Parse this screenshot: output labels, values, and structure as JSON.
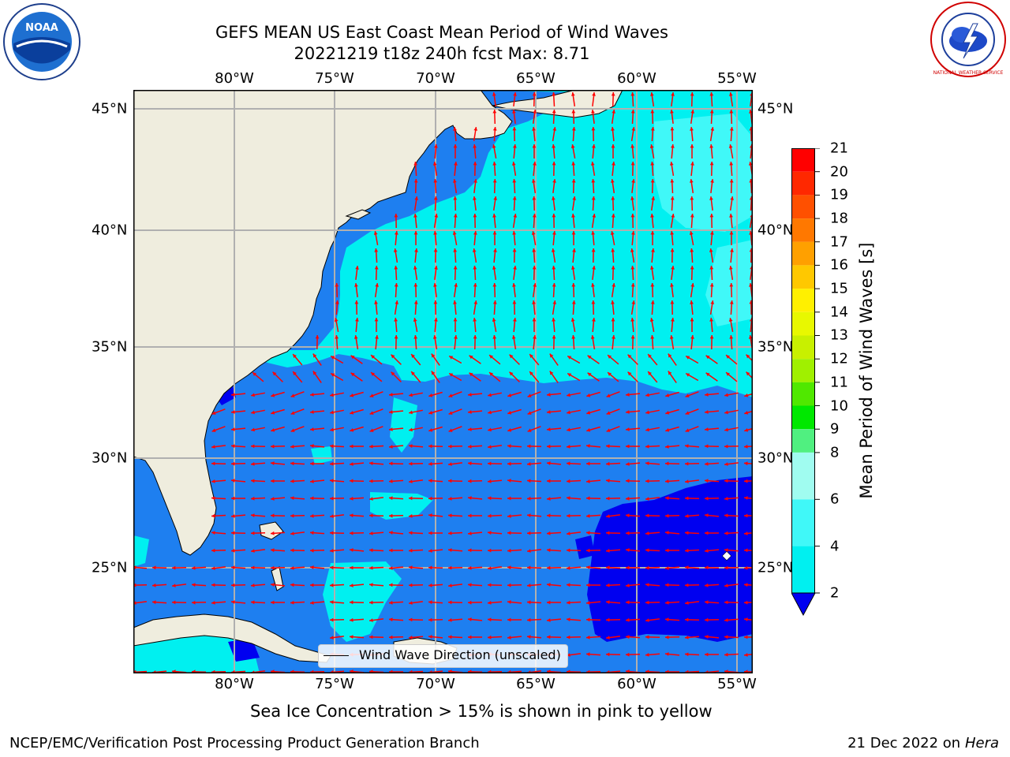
{
  "title": {
    "line1": "GEFS MEAN US East Coast Mean Period of Wind Waves",
    "line2": "20221219 t18z 240h fcst   Max: 8.71"
  },
  "map": {
    "lon_ticks": [
      "80°W",
      "75°W",
      "70°W",
      "65°W",
      "60°W",
      "55°W"
    ],
    "lat_ticks": [
      "45°N",
      "40°N",
      "35°N",
      "30°N",
      "25°N"
    ],
    "land_color": "#efedde",
    "arrow_color": "#ff0000",
    "grid_color": "#b0b0b0",
    "regions": [
      {
        "name": "band 2-4 s",
        "color": "#1e7ff0"
      },
      {
        "name": "band 4-6 s",
        "color": "#00f0f0"
      },
      {
        "name": "band 6-8 s",
        "color": "#40f8f8"
      },
      {
        "name": "band <2 s",
        "color": "#0000f0"
      }
    ],
    "legend_label": "Wind Wave Direction (unscaled)"
  },
  "colorbar": {
    "title": "Mean Period of Wind Waves [s]",
    "tick_labels": [
      "21",
      "20",
      "19",
      "18",
      "17",
      "16",
      "15",
      "14",
      "13",
      "12",
      "11",
      "10",
      "9",
      "8",
      "6",
      "4",
      "2"
    ],
    "tick_values": [
      21,
      20,
      19,
      18,
      17,
      16,
      15,
      14,
      13,
      12,
      11,
      10,
      9,
      8,
      6,
      4,
      2
    ],
    "levels": [
      {
        "from": 20,
        "to": 21,
        "color": "#ff0000"
      },
      {
        "from": 19,
        "to": 20,
        "color": "#ff2800"
      },
      {
        "from": 18,
        "to": 19,
        "color": "#ff5000"
      },
      {
        "from": 17,
        "to": 18,
        "color": "#ff7800"
      },
      {
        "from": 16,
        "to": 17,
        "color": "#ffa000"
      },
      {
        "from": 15,
        "to": 16,
        "color": "#ffc800"
      },
      {
        "from": 14,
        "to": 15,
        "color": "#fff000"
      },
      {
        "from": 13,
        "to": 14,
        "color": "#e8f800"
      },
      {
        "from": 12,
        "to": 13,
        "color": "#c8f000"
      },
      {
        "from": 11,
        "to": 12,
        "color": "#a0f000"
      },
      {
        "from": 10,
        "to": 11,
        "color": "#50e800"
      },
      {
        "from": 9,
        "to": 10,
        "color": "#00e800"
      },
      {
        "from": 8,
        "to": 9,
        "color": "#50f080"
      },
      {
        "from": 6,
        "to": 8,
        "color": "#a0fcf0"
      },
      {
        "from": 4,
        "to": 6,
        "color": "#40f8f8"
      },
      {
        "from": 2,
        "to": 4,
        "color": "#00f0f0"
      },
      {
        "from": 0,
        "to": 2,
        "color": "#1e7ff0"
      }
    ],
    "extend_color": "#0000f0"
  },
  "footnote": "Sea Ice Concentration > 15% is shown in pink to yellow",
  "credit_left": "NCEP/EMC/Verification Post Processing Product Generation Branch",
  "credit_date": "21 Dec 2022 on",
  "credit_host": "Hera",
  "logos": {
    "left": {
      "icon": "noaa-logo",
      "text": "NOAA"
    },
    "right": {
      "icon": "nws-logo",
      "text": "NATIONAL WEATHER SERVICE"
    }
  }
}
